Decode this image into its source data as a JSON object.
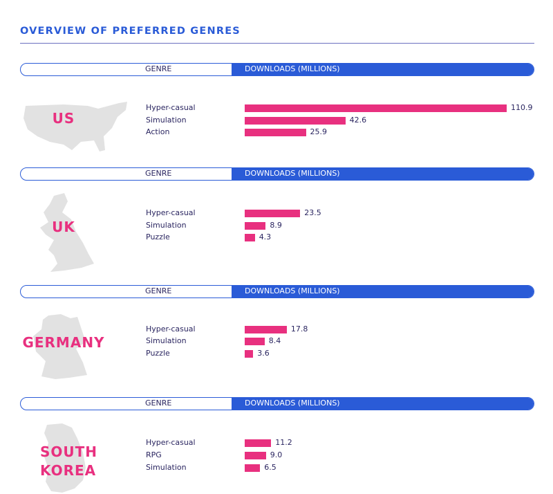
{
  "title": "OVERVIEW OF PREFERRED GENRES",
  "colors": {
    "accent": "#2a5bd7",
    "bar": "#e8307f",
    "text": "#2a2560",
    "map": "#e2e2e2"
  },
  "chart_data": [
    {
      "type": "bar",
      "orientation": "horizontal",
      "country": "US",
      "header": {
        "genre": "GENRE",
        "downloads": "DOWNLOADS (MILLIONS)"
      },
      "categories": [
        "Hyper-casual",
        "Simulation",
        "Action"
      ],
      "values": [
        110.9,
        42.6,
        25.9
      ]
    },
    {
      "type": "bar",
      "orientation": "horizontal",
      "country": "UK",
      "header": {
        "genre": "GENRE",
        "downloads": "DOWNLOADS (MILLIONS)"
      },
      "categories": [
        "Hyper-casual",
        "Simulation",
        "Puzzle"
      ],
      "values": [
        23.5,
        8.9,
        4.3
      ]
    },
    {
      "type": "bar",
      "orientation": "horizontal",
      "country": "GERMANY",
      "header": {
        "genre": "GENRE",
        "downloads": "DOWNLOADS (MILLIONS)"
      },
      "categories": [
        "Hyper-casual",
        "Simulation",
        "Puzzle"
      ],
      "values": [
        17.8,
        8.4,
        3.6
      ]
    },
    {
      "type": "bar",
      "orientation": "horizontal",
      "country": "SOUTH KOREA",
      "header": {
        "genre": "GENRE",
        "downloads": "DOWNLOADS (MILLIONS)"
      },
      "categories": [
        "Hyper-casual",
        "RPG",
        "Simulation"
      ],
      "values": [
        11.2,
        9.0,
        6.5
      ]
    }
  ]
}
